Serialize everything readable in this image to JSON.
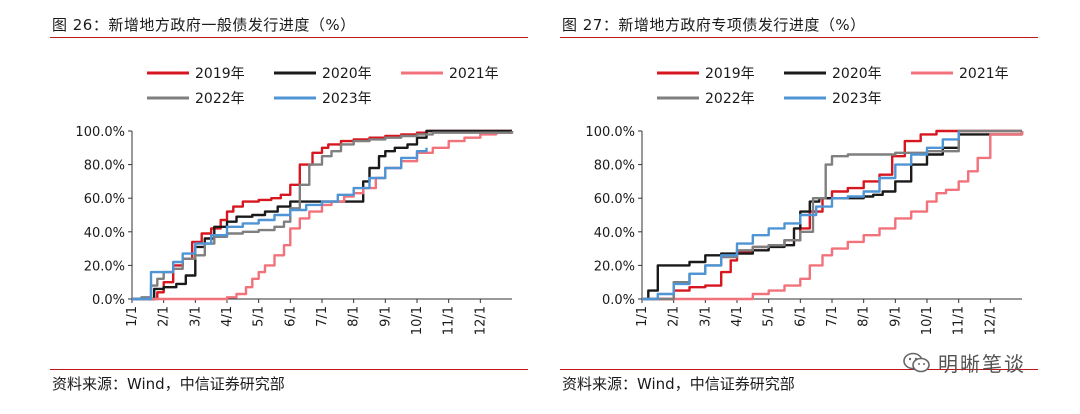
{
  "figures": [
    {
      "title": "图 26：新增地方政府一般债发行进度（%）",
      "source": "资料来源：Wind，中信证券研究部"
    },
    {
      "title": "图 27：新增地方政府专项债发行进度（%）",
      "source": "资料来源：Wind，中信证券研究部"
    }
  ],
  "watermark": "明晰笔谈",
  "chart_data": [
    {
      "type": "line",
      "title": "图 26：新增地方政府一般债发行进度（%）",
      "xlabel": "",
      "ylabel": "",
      "x_range": [
        1,
        13
      ],
      "x_ticks": [
        "1/1",
        "2/1",
        "3/1",
        "4/1",
        "5/1",
        "6/1",
        "7/1",
        "8/1",
        "9/1",
        "10/1",
        "11/1",
        "12/1"
      ],
      "y_ticks": [
        "0.0%",
        "20.0%",
        "40.0%",
        "60.0%",
        "80.0%",
        "100.0%"
      ],
      "ylim": [
        0,
        100
      ],
      "grid": false,
      "legend_position": "top",
      "series": [
        {
          "name": "2019年",
          "color": "#d7171f",
          "x": [
            1,
            1.5,
            1.8,
            2,
            2.3,
            2.6,
            2.9,
            3.2,
            3.5,
            3.8,
            4,
            4.2,
            4.5,
            5,
            5.4,
            5.7,
            6,
            6.3,
            6.7,
            7,
            7.2,
            7.6,
            8,
            8.5,
            9,
            9.5,
            10,
            10.3,
            13
          ],
          "y": [
            0,
            0,
            4,
            10,
            20,
            24,
            34,
            39,
            42,
            47,
            52,
            55,
            58,
            59,
            60,
            62,
            68,
            80,
            87,
            90,
            92,
            94,
            95,
            96,
            97,
            98,
            99,
            100,
            100
          ]
        },
        {
          "name": "2020年",
          "color": "#1a1a1a",
          "x": [
            1,
            1.5,
            1.7,
            2,
            2.4,
            2.7,
            3,
            3.3,
            3.6,
            4,
            4.3,
            4.8,
            5.2,
            5.6,
            6,
            6.5,
            7,
            7.5,
            8,
            8.3,
            8.5,
            8.8,
            9,
            9.3,
            9.7,
            10,
            10.3,
            13
          ],
          "y": [
            0,
            0,
            6,
            7,
            9,
            14,
            31,
            36,
            43,
            46,
            49,
            50,
            52,
            55,
            58,
            58,
            58,
            58,
            58,
            70,
            78,
            85,
            88,
            90,
            92,
            96,
            100,
            100
          ]
        },
        {
          "name": "2021年",
          "color": "#f2727b",
          "x": [
            1,
            3.5,
            4,
            4.3,
            4.6,
            4.8,
            5,
            5.2,
            5.5,
            5.8,
            6,
            6.3,
            6.6,
            7,
            7.3,
            7.7,
            8,
            8.3,
            8.7,
            9,
            9.5,
            10,
            10.5,
            11,
            11.5,
            12,
            12.5,
            13
          ],
          "y": [
            0,
            0,
            1,
            3,
            7,
            12,
            16,
            20,
            26,
            32,
            42,
            48,
            52,
            56,
            58,
            61,
            63,
            66,
            72,
            78,
            82,
            87,
            90,
            94,
            96,
            98,
            99,
            100
          ]
        },
        {
          "name": "2022年",
          "color": "#7f7f7f",
          "x": [
            1,
            1.3,
            1.6,
            1.8,
            2,
            2.3,
            2.6,
            3,
            3.3,
            3.6,
            4,
            4.5,
            5,
            5.5,
            5.8,
            6,
            6.3,
            6.6,
            7,
            7.3,
            7.6,
            8,
            8.5,
            9,
            9.5,
            10,
            10.5,
            13
          ],
          "y": [
            0,
            1,
            8,
            12,
            16,
            18,
            24,
            26,
            33,
            37,
            39,
            40,
            41,
            43,
            46,
            54,
            68,
            80,
            85,
            88,
            92,
            94,
            95,
            96,
            97,
            98,
            99,
            100
          ]
        },
        {
          "name": "2023年",
          "color": "#4f95d5",
          "x": [
            1,
            1.4,
            1.6,
            2,
            2.3,
            2.6,
            3,
            3.5,
            4,
            4.5,
            5,
            5.5,
            6,
            6.5,
            7,
            7.5,
            8,
            8.5,
            9,
            9.5,
            10,
            10.3
          ],
          "y": [
            0,
            0,
            16,
            16,
            22,
            27,
            33,
            38,
            43,
            45,
            47,
            50,
            53,
            56,
            58,
            62,
            66,
            72,
            78,
            84,
            88,
            90
          ]
        }
      ]
    },
    {
      "type": "line",
      "title": "图 27：新增地方政府专项债发行进度（%）",
      "xlabel": "",
      "ylabel": "",
      "x_range": [
        1,
        13
      ],
      "x_ticks": [
        "1/1",
        "2/1",
        "3/1",
        "4/1",
        "5/1",
        "6/1",
        "7/1",
        "8/1",
        "9/1",
        "10/1",
        "11/1",
        "12/1"
      ],
      "y_ticks": [
        "0.0%",
        "20.0%",
        "40.0%",
        "60.0%",
        "80.0%",
        "100.0%"
      ],
      "ylim": [
        0,
        100
      ],
      "grid": false,
      "legend_position": "top",
      "series": [
        {
          "name": "2019年",
          "color": "#d7171f",
          "x": [
            1,
            1.8,
            2,
            2.5,
            3,
            3.5,
            3.8,
            4,
            4.5,
            5,
            5.5,
            6,
            6.3,
            6.7,
            7,
            7.5,
            8,
            8.5,
            8.9,
            9.3,
            9.8,
            10.3,
            13
          ],
          "y": [
            0,
            0,
            5,
            7,
            8,
            16,
            23,
            28,
            31,
            32,
            35,
            42,
            52,
            60,
            64,
            66,
            70,
            74,
            85,
            94,
            98,
            100,
            100
          ]
        },
        {
          "name": "2020年",
          "color": "#1a1a1a",
          "x": [
            1,
            1.2,
            1.5,
            2,
            2.5,
            3,
            3.5,
            4,
            4.5,
            5,
            5.5,
            5.8,
            6,
            6.3,
            6.6,
            7,
            7.5,
            8,
            8.3,
            8.6,
            9,
            9.5,
            10,
            10.5,
            11,
            13
          ],
          "y": [
            0,
            5,
            20,
            20,
            22,
            26,
            27,
            27,
            29,
            31,
            32,
            42,
            52,
            58,
            60,
            60,
            60,
            61,
            62,
            64,
            70,
            80,
            86,
            90,
            98,
            100
          ]
        },
        {
          "name": "2021年",
          "color": "#f2727b",
          "x": [
            1,
            4,
            4.5,
            5,
            5.5,
            6,
            6.3,
            6.7,
            7,
            7.5,
            8,
            8.5,
            9,
            9.5,
            10,
            10.3,
            10.6,
            11,
            11.3,
            11.6,
            12,
            13
          ],
          "y": [
            0,
            0,
            3,
            5,
            8,
            12,
            20,
            26,
            30,
            34,
            38,
            42,
            48,
            52,
            58,
            63,
            65,
            70,
            76,
            84,
            98,
            100
          ]
        },
        {
          "name": "2022年",
          "color": "#7f7f7f",
          "x": [
            1,
            1.5,
            2,
            2.5,
            3,
            3.5,
            4,
            4.5,
            5,
            5.5,
            6,
            6.4,
            6.8,
            7,
            7.5,
            8,
            8.5,
            9,
            9.5,
            10,
            10.3,
            11,
            13
          ],
          "y": [
            0,
            0,
            10,
            15,
            20,
            25,
            29,
            31,
            32,
            35,
            40,
            60,
            80,
            85,
            86,
            86,
            86,
            87,
            87,
            88,
            88,
            100,
            100
          ]
        },
        {
          "name": "2023年",
          "color": "#4f95d5",
          "x": [
            1,
            1.5,
            2,
            2.5,
            3,
            3.5,
            4,
            4.5,
            5,
            5.5,
            6,
            6.5,
            7,
            7.5,
            8,
            8.5,
            9,
            9.5,
            10,
            10.5,
            11
          ],
          "y": [
            0,
            3,
            9,
            15,
            20,
            26,
            33,
            38,
            42,
            45,
            50,
            55,
            60,
            61,
            64,
            72,
            80,
            86,
            90,
            95,
            100
          ]
        }
      ]
    }
  ]
}
